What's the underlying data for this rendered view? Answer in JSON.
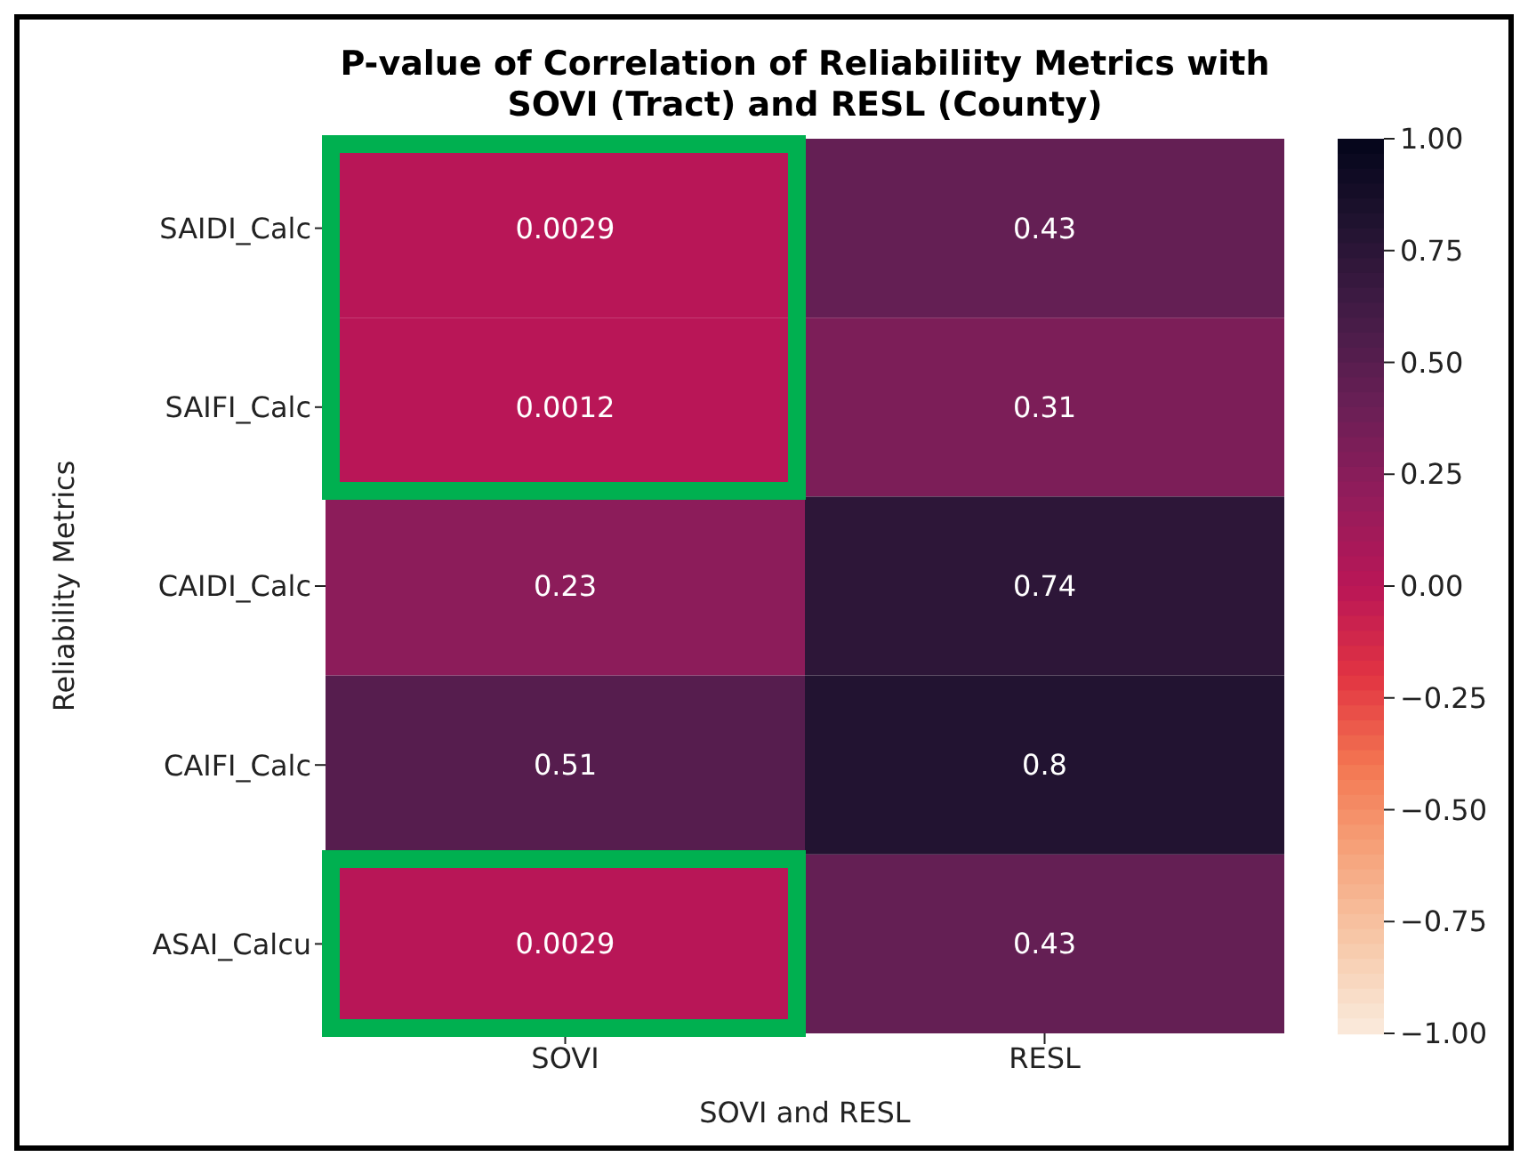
{
  "chart_data": {
    "type": "heatmap",
    "title": "P-value of Correlation of Reliabiliity Metrics with\nSOVI (Tract) and RESL (County)",
    "xlabel": "SOVI and RESL",
    "ylabel": "Reliability Metrics",
    "categories": [
      "SOVI",
      "RESL"
    ],
    "y_categories": [
      "SAIDI_Calc",
      "SAIFI_Calc",
      "CAIDI_Calc",
      "CAIFI_Calc",
      "ASAI_Calcu"
    ],
    "cells": [
      [
        0.0029,
        0.43
      ],
      [
        0.0012,
        0.31
      ],
      [
        0.23,
        0.74
      ],
      [
        0.51,
        0.8
      ],
      [
        0.0029,
        0.43
      ]
    ],
    "data_labels": true,
    "clim": [
      -1,
      1
    ],
    "cticks": [
      {
        "value": 1,
        "label": "1.00"
      },
      {
        "value": 0.75,
        "label": "0.75"
      },
      {
        "value": 0.5,
        "label": "0.50"
      },
      {
        "value": 0.25,
        "label": "0.25"
      },
      {
        "value": 0,
        "label": "0.00"
      },
      {
        "value": -0.25,
        "label": "−0.25"
      },
      {
        "value": -0.5,
        "label": "−0.50"
      },
      {
        "value": -0.75,
        "label": "−0.75"
      },
      {
        "value": -1,
        "label": "−1.00"
      }
    ]
  }
}
